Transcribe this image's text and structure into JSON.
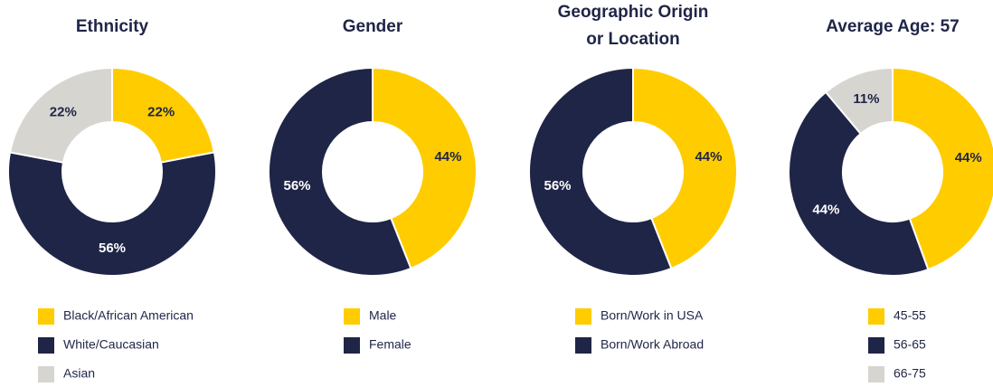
{
  "chart_data": [
    {
      "type": "donut",
      "title": [
        "Ethnicity"
      ],
      "categories": [
        "Black/African American",
        "White/Caucasian",
        "Asian"
      ],
      "values": [
        22,
        56,
        22
      ],
      "value_labels": [
        "22%",
        "56%",
        "22%"
      ],
      "colors": [
        "#ffcc00",
        "#1f2547",
        "#d6d5d0"
      ]
    },
    {
      "type": "donut",
      "title": [
        "Gender"
      ],
      "categories": [
        "Male",
        "Female"
      ],
      "values": [
        44,
        56
      ],
      "value_labels": [
        "44%",
        "56%"
      ],
      "colors": [
        "#ffcc00",
        "#1f2547"
      ]
    },
    {
      "type": "donut",
      "title": [
        "Geographic Origin",
        "or Location"
      ],
      "categories": [
        "Born/Work in USA",
        "Born/Work Abroad"
      ],
      "values": [
        44,
        56
      ],
      "value_labels": [
        "44%",
        "56%"
      ],
      "colors": [
        "#ffcc00",
        "#1f2547"
      ]
    },
    {
      "type": "donut",
      "title": [
        "Average Age: 57"
      ],
      "categories": [
        "45-55",
        "56-65",
        "66-75"
      ],
      "values": [
        44,
        44,
        11
      ],
      "value_labels": [
        "44%",
        "44%",
        "11%"
      ],
      "colors": [
        "#ffcc00",
        "#1f2547",
        "#d6d5d0"
      ]
    }
  ]
}
